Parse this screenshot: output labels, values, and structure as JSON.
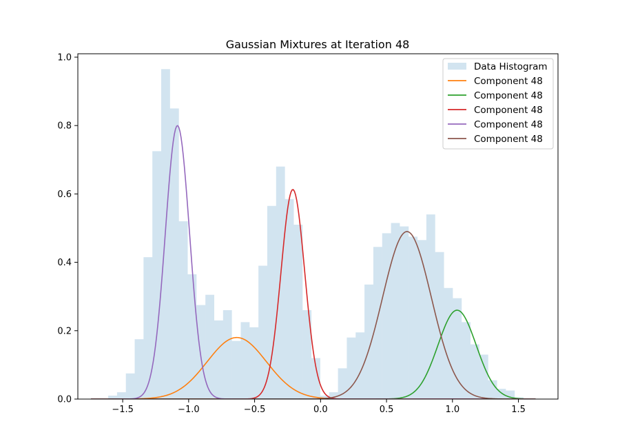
{
  "chart_data": {
    "type": "histogram+line",
    "title": "Gaussian Mixtures at Iteration 48",
    "xlabel": "",
    "ylabel": "",
    "xlim": [
      -1.84,
      1.8
    ],
    "ylim": [
      0,
      1.01
    ],
    "x_ticks": [
      -1.5,
      -1.0,
      -0.5,
      0.0,
      0.5,
      1.0,
      1.5
    ],
    "x_tick_labels": [
      "−1.5",
      "−1.0",
      "−0.5",
      "0.0",
      "0.5",
      "1.0",
      "1.5"
    ],
    "y_ticks": [
      0.0,
      0.2,
      0.4,
      0.6,
      0.8,
      1.0
    ],
    "y_tick_labels": [
      "0.0",
      "0.2",
      "0.4",
      "0.6",
      "0.8",
      "1.0"
    ],
    "grid": false,
    "legend_position": "top-right",
    "histogram": {
      "name": "Data Histogram",
      "color": "#1f77b4",
      "alpha": 0.2,
      "bin_start": -1.61,
      "bin_width": 0.067,
      "values": [
        0.01,
        0.02,
        0.075,
        0.175,
        0.415,
        0.725,
        0.965,
        0.85,
        0.52,
        0.365,
        0.275,
        0.305,
        0.23,
        0.26,
        0.17,
        0.225,
        0.21,
        0.39,
        0.565,
        0.68,
        0.585,
        0.51,
        0.26,
        0.12,
        0.01,
        0.02,
        0.09,
        0.18,
        0.195,
        0.335,
        0.445,
        0.485,
        0.515,
        0.505,
        0.475,
        0.465,
        0.54,
        0.43,
        0.325,
        0.295,
        0.225,
        0.16,
        0.13,
        0.055,
        0.03,
        0.025,
        0.005
      ]
    },
    "curves_x_range": [
      -1.74,
      1.63
    ],
    "series": [
      {
        "name": "Component 48",
        "color": "#ff7f0e",
        "mean": -0.635,
        "std": 0.225,
        "peak": 0.18
      },
      {
        "name": "Component 48",
        "color": "#2ca02c",
        "mean": 1.035,
        "std": 0.145,
        "peak": 0.26
      },
      {
        "name": "Component 48",
        "color": "#d62728",
        "mean": -0.21,
        "std": 0.09,
        "peak": 0.613
      },
      {
        "name": "Component 48",
        "color": "#9467bd",
        "mean": -1.085,
        "std": 0.092,
        "peak": 0.8
      },
      {
        "name": "Component 48",
        "color": "#8c564b",
        "mean": 0.655,
        "std": 0.185,
        "peak": 0.49
      }
    ]
  }
}
